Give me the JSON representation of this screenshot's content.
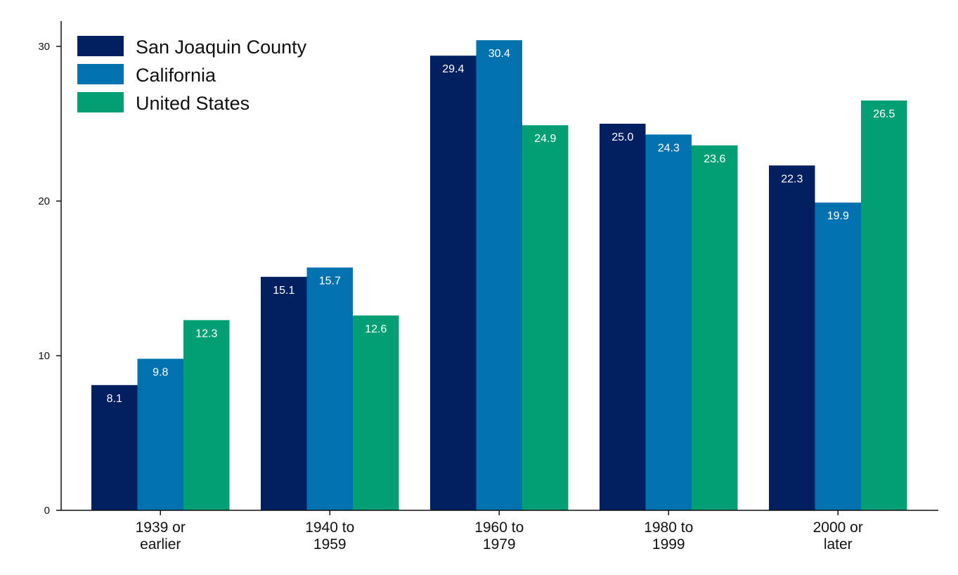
{
  "chart_data": {
    "type": "bar",
    "title": "",
    "xlabel": "",
    "ylabel": "",
    "categories": [
      [
        "1939 or",
        "earlier"
      ],
      [
        "1940 to",
        "1959"
      ],
      [
        "1960 to",
        "1979"
      ],
      [
        "1980 to",
        "1999"
      ],
      [
        "2000 or",
        "later"
      ]
    ],
    "series": [
      {
        "name": "San Joaquin County",
        "color": "#022060",
        "values": [
          8.1,
          15.1,
          29.4,
          25.0,
          22.3
        ]
      },
      {
        "name": "California",
        "color": "#0272ae",
        "values": [
          9.8,
          15.7,
          30.4,
          24.3,
          19.9
        ]
      },
      {
        "name": "United States",
        "color": "#039f74",
        "values": [
          12.3,
          12.6,
          24.9,
          23.6,
          26.5
        ]
      }
    ],
    "value_labels": [
      [
        "8.1",
        "15.1",
        "29.4",
        "25.0",
        "22.3"
      ],
      [
        "9.8",
        "15.7",
        "30.4",
        "24.3",
        "19.9"
      ],
      [
        "12.3",
        "12.6",
        "24.9",
        "23.6",
        "26.5"
      ]
    ],
    "ylim": [
      0,
      31.5
    ],
    "yticks": [
      0,
      10,
      20,
      30
    ],
    "ytick_labels": [
      "0",
      "10",
      "20",
      "30"
    ],
    "grid": false,
    "legend_position": "top-left"
  }
}
